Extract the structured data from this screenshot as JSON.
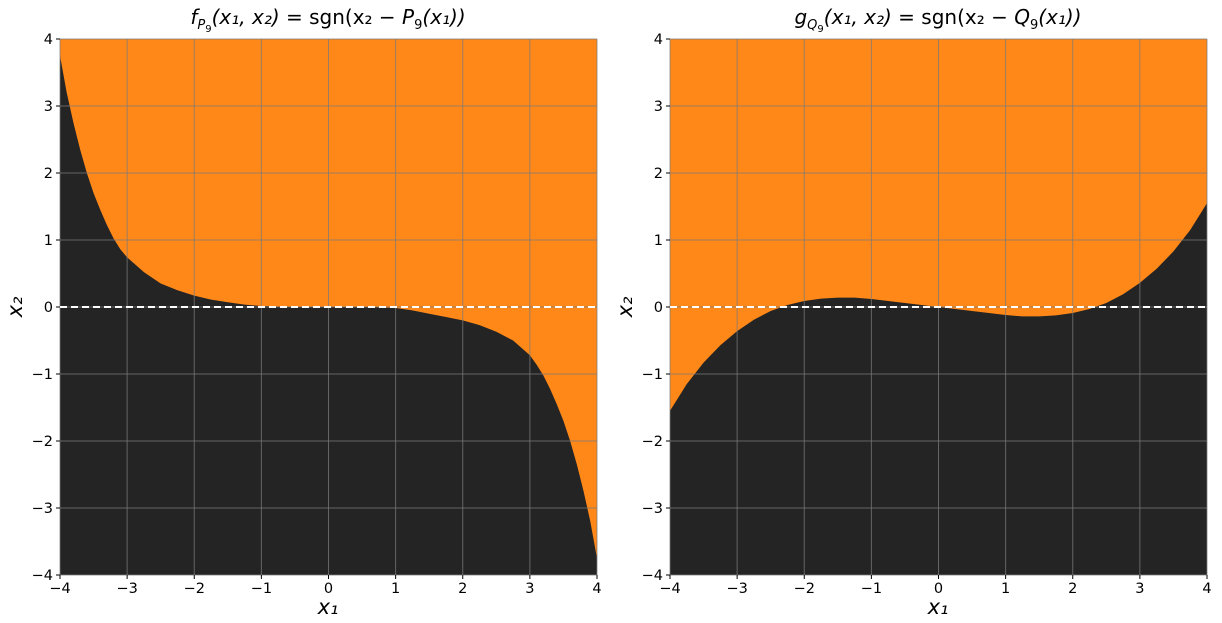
{
  "chart_data": [
    {
      "type": "heatmap",
      "title": "f_{P_9}(x_1, x_2) = sgn(x_2 − P_9(x_1))",
      "title_parts": {
        "func": "f",
        "func_sub": "P",
        "func_subsub": "9",
        "lhs_args": "(x₁, x₂)",
        "eq": " = sgn(x₂ − ",
        "poly": "P",
        "poly_sub": "9",
        "poly_arg": "(x₁))"
      },
      "xlabel": "x₁",
      "ylabel": "x₂",
      "xlim": [
        -4,
        4
      ],
      "ylim": [
        -4,
        4
      ],
      "xticks": [
        -4,
        -3,
        -2,
        -1,
        0,
        1,
        2,
        3,
        4
      ],
      "yticks": [
        -4,
        -3,
        -2,
        -1,
        0,
        1,
        2,
        3,
        4
      ],
      "grid": true,
      "reference_line": {
        "y": 0,
        "style": "dashed",
        "color": "#ffffff"
      },
      "region_colors": {
        "above_boundary": "#ff8819",
        "below_boundary": "#242424"
      },
      "boundary": {
        "x": [
          -4,
          -3.9,
          -3.8,
          -3.7,
          -3.6,
          -3.5,
          -3.4,
          -3.3,
          -3.2,
          -3.1,
          -3,
          -2.75,
          -2.5,
          -2.25,
          -2,
          -1.75,
          -1.5,
          -1.25,
          -1,
          -0.5,
          0,
          0.5,
          1,
          1.25,
          1.5,
          1.75,
          2,
          2.25,
          2.5,
          2.75,
          3,
          3.1,
          3.2,
          3.3,
          3.4,
          3.5,
          3.6,
          3.7,
          3.8,
          3.9,
          4
        ],
        "y": [
          3.75,
          3.2,
          2.75,
          2.35,
          2.0,
          1.7,
          1.45,
          1.22,
          1.02,
          0.86,
          0.74,
          0.52,
          0.35,
          0.25,
          0.17,
          0.11,
          0.07,
          0.035,
          0.015,
          0.0,
          0.0,
          0.0,
          -0.015,
          -0.05,
          -0.1,
          -0.15,
          -0.2,
          -0.27,
          -0.37,
          -0.5,
          -0.72,
          -0.86,
          -1.02,
          -1.22,
          -1.45,
          -1.7,
          -2.0,
          -2.35,
          -2.75,
          -3.2,
          -3.75
        ]
      }
    },
    {
      "type": "heatmap",
      "title": "g_{Q_9}(x_1, x_2) = sgn(x_2 − Q_9(x_1))",
      "title_parts": {
        "func": "g",
        "func_sub": "Q",
        "func_subsub": "9",
        "lhs_args": "(x₁, x₂)",
        "eq": " = sgn(x₂ − ",
        "poly": "Q",
        "poly_sub": "9",
        "poly_arg": "(x₁))"
      },
      "xlabel": "x₁",
      "ylabel": "x₂",
      "xlim": [
        -4,
        4
      ],
      "ylim": [
        -4,
        4
      ],
      "xticks": [
        -4,
        -3,
        -2,
        -1,
        0,
        1,
        2,
        3,
        4
      ],
      "yticks": [
        -4,
        -3,
        -2,
        -1,
        0,
        1,
        2,
        3,
        4
      ],
      "grid": true,
      "reference_line": {
        "y": 0,
        "style": "dashed",
        "color": "#ffffff"
      },
      "region_colors": {
        "above_boundary": "#ff8819",
        "below_boundary": "#242424"
      },
      "boundary": {
        "x": [
          -4,
          -3.75,
          -3.5,
          -3.25,
          -3,
          -2.75,
          -2.5,
          -2.25,
          -2,
          -1.75,
          -1.5,
          -1.25,
          -1,
          -0.75,
          -0.5,
          -0.25,
          0,
          0.25,
          0.5,
          0.75,
          1,
          1.25,
          1.5,
          1.75,
          2,
          2.25,
          2.5,
          2.75,
          3,
          3.25,
          3.5,
          3.75,
          4
        ],
        "y": [
          -1.55,
          -1.15,
          -0.83,
          -0.57,
          -0.36,
          -0.19,
          -0.06,
          0.03,
          0.09,
          0.125,
          0.14,
          0.14,
          0.12,
          0.09,
          0.06,
          0.03,
          0.0,
          -0.03,
          -0.06,
          -0.09,
          -0.12,
          -0.14,
          -0.14,
          -0.125,
          -0.09,
          -0.03,
          0.06,
          0.19,
          0.36,
          0.57,
          0.83,
          1.15,
          1.55
        ]
      }
    }
  ]
}
